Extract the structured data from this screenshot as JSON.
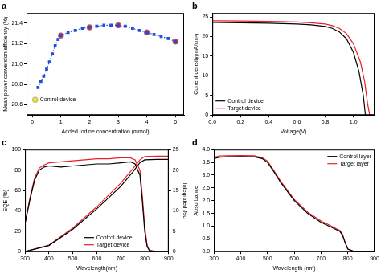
{
  "chart_data": [
    {
      "type": "line",
      "title": "a",
      "x_label": "Added Iodine concentration (mmol)",
      "y_label": "Mean power conversion efficiency (%)",
      "xlim": [
        -0.2,
        5.3
      ],
      "xticks": [
        0,
        1,
        2,
        3,
        4,
        5
      ],
      "ylim": [
        20.5,
        21.5
      ],
      "yticks": [
        20.6,
        20.8,
        {
          "value": 21.0,
          "label": "21.0"
        },
        21.2,
        21.4
      ],
      "grid": false,
      "series": [
        {
          "type": "line",
          "color": "#1f4fd8",
          "marker": "square",
          "line_style": "dotted",
          "x": [
            0.2,
            0.3,
            0.4,
            0.5,
            0.6,
            0.7,
            0.8,
            0.9,
            1,
            1.25,
            1.5,
            1.75,
            2,
            2.25,
            2.5,
            2.75,
            3,
            3.25,
            3.5,
            3.75,
            4,
            4.25,
            4.5,
            4.75,
            5
          ],
          "values": [
            20.77,
            20.83,
            20.88,
            20.95,
            21.02,
            21.1,
            21.18,
            21.24,
            21.28,
            21.31,
            21.33,
            21.35,
            21.36,
            21.37,
            21.38,
            21.38,
            21.38,
            21.37,
            21.35,
            21.33,
            21.31,
            21.29,
            21.27,
            21.25,
            21.22
          ]
        },
        {
          "type": "scatter",
          "color": "#e8303a",
          "marker": "circle",
          "x": [
            1,
            2,
            3,
            4,
            5
          ],
          "values": [
            21.28,
            21.36,
            21.38,
            21.31,
            21.22
          ]
        },
        {
          "type": "scatter",
          "color": "#e8e040",
          "marker": "circle",
          "x": [
            0.1
          ],
          "values": [
            20.65
          ]
        }
      ],
      "annotations": [
        {
          "text": "Control device",
          "x": 0.1,
          "y": 20.65
        }
      ]
    },
    {
      "type": "line",
      "title": "b",
      "x_label": "Voltage(V)",
      "y_label": "Current density(mA/cm²)",
      "xlim": [
        0,
        1.15
      ],
      "xticks": [
        {
          "value": 0,
          "label": "0.0"
        },
        0.2,
        0.4,
        0.6,
        0.8,
        {
          "value": 1,
          "label": "1.0"
        }
      ],
      "ylim": [
        0,
        26
      ],
      "yticks": [
        0,
        5,
        10,
        15,
        20,
        25
      ],
      "grid": false,
      "legend": "bottom-left",
      "series": [
        {
          "name": "Control device",
          "color": "#000000",
          "marker": "none",
          "line_style": "solid",
          "x": [
            0,
            0.2,
            0.4,
            0.6,
            0.7,
            0.8,
            0.85,
            0.9,
            0.95,
            1.0,
            1.04,
            1.07,
            1.085
          ],
          "values": [
            23.6,
            23.5,
            23.4,
            23.2,
            23.0,
            22.6,
            22.1,
            21.2,
            19.5,
            16.0,
            11.0,
            5.0,
            0
          ]
        },
        {
          "name": "Target device",
          "color": "#e8202a",
          "marker": "none",
          "line_style": "solid",
          "x": [
            0,
            0.2,
            0.4,
            0.6,
            0.7,
            0.8,
            0.85,
            0.9,
            0.95,
            1.0,
            1.05,
            1.08,
            1.1,
            1.115
          ],
          "values": [
            24.0,
            23.95,
            23.85,
            23.7,
            23.5,
            23.2,
            22.8,
            22.1,
            20.8,
            18.2,
            13.5,
            8.5,
            3.0,
            0
          ]
        }
      ]
    },
    {
      "type": "line",
      "title": "c",
      "x_label": "Wavelength(nm)",
      "y_label": "EQE (%)",
      "y2_label": "Integrated Jsc",
      "xlim": [
        300,
        900
      ],
      "xticks": [
        300,
        400,
        500,
        600,
        700,
        800,
        900
      ],
      "ylim": [
        0,
        100
      ],
      "yticks": [
        0,
        20,
        40,
        60,
        80,
        100
      ],
      "y2lim": [
        0,
        25
      ],
      "y2ticks": [
        0,
        5,
        10,
        15,
        20,
        25
      ],
      "grid": false,
      "legend": "bottom",
      "series": [
        {
          "name": "Control device",
          "color": "#000000",
          "marker": "none",
          "line_style": "solid",
          "x": [
            300,
            320,
            340,
            360,
            380,
            400,
            450,
            500,
            550,
            600,
            650,
            700,
            740,
            760,
            780,
            790,
            800,
            810,
            820,
            850,
            900
          ],
          "values": [
            27,
            50,
            70,
            80,
            83,
            84,
            83,
            84,
            85,
            86,
            86,
            87,
            88,
            86,
            75,
            50,
            20,
            5,
            1,
            0,
            0
          ]
        },
        {
          "name": "Target device",
          "color": "#e8202a",
          "marker": "none",
          "line_style": "solid",
          "x": [
            300,
            320,
            340,
            360,
            380,
            400,
            450,
            500,
            550,
            600,
            650,
            700,
            740,
            760,
            780,
            790,
            800,
            810,
            820,
            850,
            900
          ],
          "values": [
            28,
            52,
            72,
            82,
            85,
            87,
            88,
            89,
            90,
            91,
            91,
            92,
            92,
            90,
            80,
            55,
            25,
            6,
            1,
            0,
            0
          ]
        },
        {
          "name": "Control device",
          "color": "#000000",
          "marker": "none",
          "line_style": "solid",
          "axis": "y2",
          "x": [
            300,
            400,
            500,
            600,
            700,
            750,
            780,
            800,
            850,
            900
          ],
          "values": [
            0,
            1.5,
            5.5,
            10.5,
            16.0,
            19.5,
            21.8,
            22.5,
            22.6,
            22.6
          ]
        },
        {
          "name": "Target device",
          "color": "#e8202a",
          "marker": "none",
          "line_style": "solid",
          "axis": "y2",
          "x": [
            300,
            400,
            500,
            600,
            700,
            750,
            780,
            800,
            850,
            900
          ],
          "values": [
            0,
            1.6,
            5.8,
            11.0,
            16.8,
            20.3,
            22.5,
            23.3,
            23.4,
            23.4
          ]
        }
      ]
    },
    {
      "type": "line",
      "title": "d",
      "x_label": "Wavelength (nm)",
      "y_label": "Absorbance",
      "xlim": [
        300,
        900
      ],
      "xticks": [
        300,
        400,
        500,
        600,
        700,
        800,
        900
      ],
      "ylim": [
        0,
        4
      ],
      "yticks": [
        {
          "value": 0,
          "label": "0.0"
        },
        0.5,
        {
          "value": 1,
          "label": "1.0"
        },
        1.5,
        {
          "value": 2,
          "label": "2.0"
        },
        2.5,
        {
          "value": 3,
          "label": "3.0"
        },
        3.5,
        {
          "value": 4,
          "label": "4.0"
        }
      ],
      "grid": false,
      "legend": "top-right",
      "series": [
        {
          "name": "Control layer",
          "color": "#000000",
          "marker": "none",
          "line_style": "solid",
          "x": [
            300,
            320,
            350,
            400,
            450,
            480,
            500,
            520,
            550,
            600,
            650,
            700,
            740,
            760,
            770,
            780,
            790,
            800,
            820,
            850,
            900
          ],
          "values": [
            3.65,
            3.7,
            3.72,
            3.73,
            3.72,
            3.65,
            3.5,
            3.2,
            2.7,
            2.0,
            1.5,
            1.15,
            0.95,
            0.85,
            0.8,
            0.65,
            0.35,
            0.1,
            0.02,
            0.01,
            0.01
          ]
        },
        {
          "name": "Target layer",
          "color": "#e8202a",
          "marker": "none",
          "line_style": "solid",
          "x": [
            300,
            320,
            350,
            400,
            450,
            480,
            500,
            520,
            550,
            600,
            650,
            700,
            740,
            760,
            770,
            780,
            790,
            800,
            820,
            850,
            900
          ],
          "values": [
            3.7,
            3.75,
            3.76,
            3.77,
            3.76,
            3.68,
            3.55,
            3.25,
            2.75,
            2.05,
            1.55,
            1.2,
            1.0,
            0.88,
            0.83,
            0.68,
            0.37,
            0.11,
            0.02,
            0.01,
            0.01
          ]
        }
      ]
    }
  ]
}
